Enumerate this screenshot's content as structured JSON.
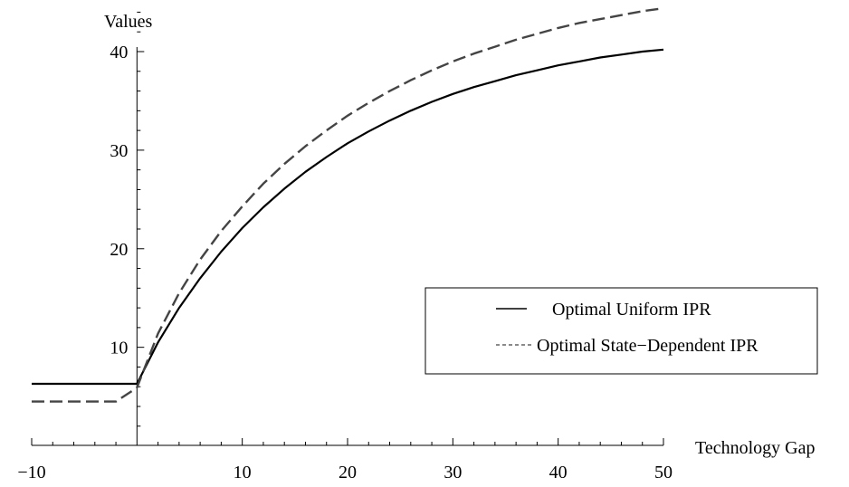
{
  "chart_data": {
    "type": "line",
    "title": "",
    "xlabel": "Technology Gap",
    "ylabel": "Values",
    "xlim": [
      -10,
      50
    ],
    "ylim": [
      -0.5,
      44.5
    ],
    "x_ticks": [
      {
        "value": -10,
        "label": "−10"
      },
      {
        "value": 10,
        "label": "10"
      },
      {
        "value": 20,
        "label": "20"
      },
      {
        "value": 30,
        "label": "30"
      },
      {
        "value": 40,
        "label": "40"
      },
      {
        "value": 50,
        "label": "50"
      }
    ],
    "y_ticks": [
      {
        "value": 10,
        "label": "10"
      },
      {
        "value": 20,
        "label": "20"
      },
      {
        "value": 30,
        "label": "30"
      },
      {
        "value": 40,
        "label": "40"
      }
    ],
    "grid": false,
    "legend": {
      "placement": "right"
    },
    "series": [
      {
        "name": "Optimal Uniform IPR",
        "style": "solid",
        "color": "#000000",
        "x": [
          -10,
          0,
          2,
          4,
          6,
          8,
          10,
          12,
          14,
          16,
          18,
          20,
          22,
          24,
          26,
          28,
          30,
          32,
          34,
          36,
          38,
          40,
          42,
          44,
          46,
          48,
          50
        ],
        "y": [
          6.3,
          6.3,
          10.5,
          14.0,
          17.0,
          19.7,
          22.1,
          24.2,
          26.1,
          27.8,
          29.3,
          30.7,
          31.9,
          33.0,
          34.0,
          34.9,
          35.7,
          36.4,
          37.0,
          37.6,
          38.1,
          38.6,
          39.0,
          39.4,
          39.7,
          40.0,
          40.2
        ]
      },
      {
        "name": "Optimal State−Dependent IPR",
        "style": "dashed",
        "color": "#444444",
        "x": [
          -10,
          -2,
          0,
          2,
          4,
          6,
          8,
          10,
          12,
          14,
          16,
          18,
          20,
          22,
          24,
          26,
          28,
          30,
          32,
          34,
          36,
          38,
          40,
          42,
          44,
          46,
          48,
          50
        ],
        "y": [
          4.5,
          4.5,
          5.9,
          11.4,
          15.5,
          18.9,
          21.8,
          24.3,
          26.6,
          28.6,
          30.4,
          32.0,
          33.5,
          34.8,
          36.0,
          37.1,
          38.1,
          39.0,
          39.8,
          40.5,
          41.2,
          41.8,
          42.4,
          42.9,
          43.3,
          43.7,
          44.1,
          44.4
        ]
      }
    ]
  }
}
